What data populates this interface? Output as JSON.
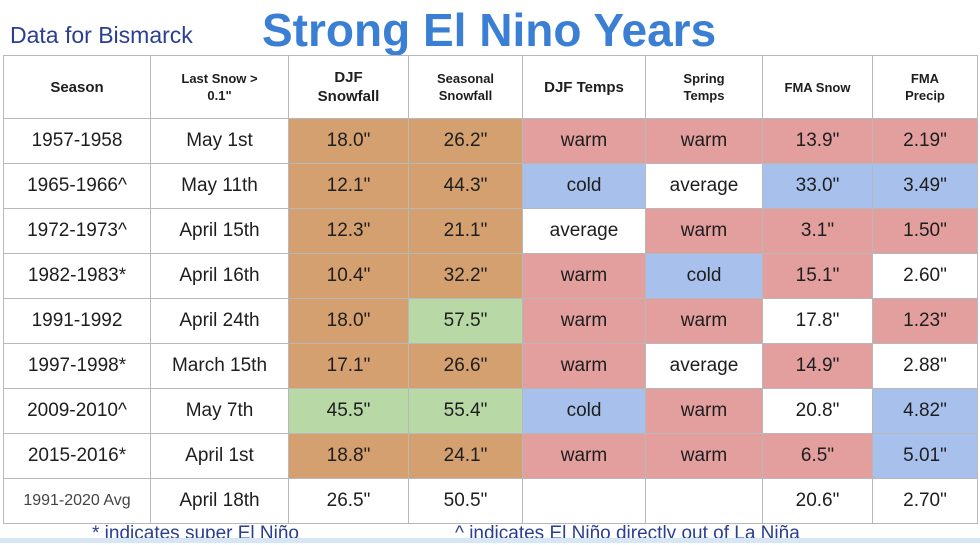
{
  "header": {
    "subtitle": "Data for Bismarck",
    "title": "Strong El Nino Years"
  },
  "columns": [
    {
      "line1": "Season",
      "line2": ""
    },
    {
      "line1": "Last Snow >",
      "line2": "0.1\""
    },
    {
      "line1": "DJF",
      "line2": "Snowfall"
    },
    {
      "line1": "Seasonal",
      "line2": "Snowfall"
    },
    {
      "line1": "DJF Temps",
      "line2": ""
    },
    {
      "line1": "Spring",
      "line2": "Temps"
    },
    {
      "line1": "FMA Snow",
      "line2": ""
    },
    {
      "line1": "FMA",
      "line2": "Precip"
    }
  ],
  "rows": [
    {
      "cells": [
        "1957-1958",
        "May 1st",
        "18.0\"",
        "26.2\"",
        "warm",
        "warm",
        "13.9\"",
        "2.19\""
      ],
      "colors": [
        "#ffffff",
        "#ffffff",
        "#d4a06f",
        "#d4a06f",
        "#e39e9e",
        "#e39e9e",
        "#e39e9e",
        "#e39e9e"
      ]
    },
    {
      "cells": [
        "1965-1966^",
        "May 11th",
        "12.1\"",
        "44.3\"",
        "cold",
        "average",
        "33.0\"",
        "3.49\""
      ],
      "colors": [
        "#ffffff",
        "#ffffff",
        "#d4a06f",
        "#d4a06f",
        "#a8c0ec",
        "#ffffff",
        "#a8c0ec",
        "#a8c0ec"
      ]
    },
    {
      "cells": [
        "1972-1973^",
        "April 15th",
        "12.3\"",
        "21.1\"",
        "average",
        "warm",
        "3.1\"",
        "1.50\""
      ],
      "colors": [
        "#ffffff",
        "#ffffff",
        "#d4a06f",
        "#d4a06f",
        "#ffffff",
        "#e39e9e",
        "#e39e9e",
        "#e39e9e"
      ]
    },
    {
      "cells": [
        "1982-1983*",
        "April 16th",
        "10.4\"",
        "32.2\"",
        "warm",
        "cold",
        "15.1\"",
        "2.60\""
      ],
      "colors": [
        "#ffffff",
        "#ffffff",
        "#d4a06f",
        "#d4a06f",
        "#e39e9e",
        "#a8c0ec",
        "#e39e9e",
        "#ffffff"
      ]
    },
    {
      "cells": [
        "1991-1992",
        "April 24th",
        "18.0\"",
        "57.5\"",
        "warm",
        "warm",
        "17.8\"",
        "1.23\""
      ],
      "colors": [
        "#ffffff",
        "#ffffff",
        "#d4a06f",
        "#b8d9a6",
        "#e39e9e",
        "#e39e9e",
        "#ffffff",
        "#e39e9e"
      ]
    },
    {
      "cells": [
        "1997-1998*",
        "March 15th",
        "17.1\"",
        "26.6\"",
        "warm",
        "average",
        "14.9\"",
        "2.88\""
      ],
      "colors": [
        "#ffffff",
        "#ffffff",
        "#d4a06f",
        "#d4a06f",
        "#e39e9e",
        "#ffffff",
        "#e39e9e",
        "#ffffff"
      ]
    },
    {
      "cells": [
        "2009-2010^",
        "May 7th",
        "45.5\"",
        "55.4\"",
        "cold",
        "warm",
        "20.8\"",
        "4.82\""
      ],
      "colors": [
        "#ffffff",
        "#ffffff",
        "#b8d9a6",
        "#b8d9a6",
        "#a8c0ec",
        "#e39e9e",
        "#ffffff",
        "#a8c0ec"
      ]
    },
    {
      "cells": [
        "2015-2016*",
        "April 1st",
        "18.8\"",
        "24.1\"",
        "warm",
        "warm",
        "6.5\"",
        "5.01\""
      ],
      "colors": [
        "#ffffff",
        "#ffffff",
        "#d4a06f",
        "#d4a06f",
        "#e39e9e",
        "#e39e9e",
        "#e39e9e",
        "#a8c0ec"
      ]
    }
  ],
  "avg_row": {
    "cells": [
      "1991-2020 Avg",
      "April 18th",
      "26.5\"",
      "50.5\"",
      "",
      "",
      "20.6\"",
      "2.70\""
    ]
  },
  "footnotes": {
    "super": "* indicates super El Niño",
    "lanina": "^ indicates El Niño directly out of La Niña"
  }
}
